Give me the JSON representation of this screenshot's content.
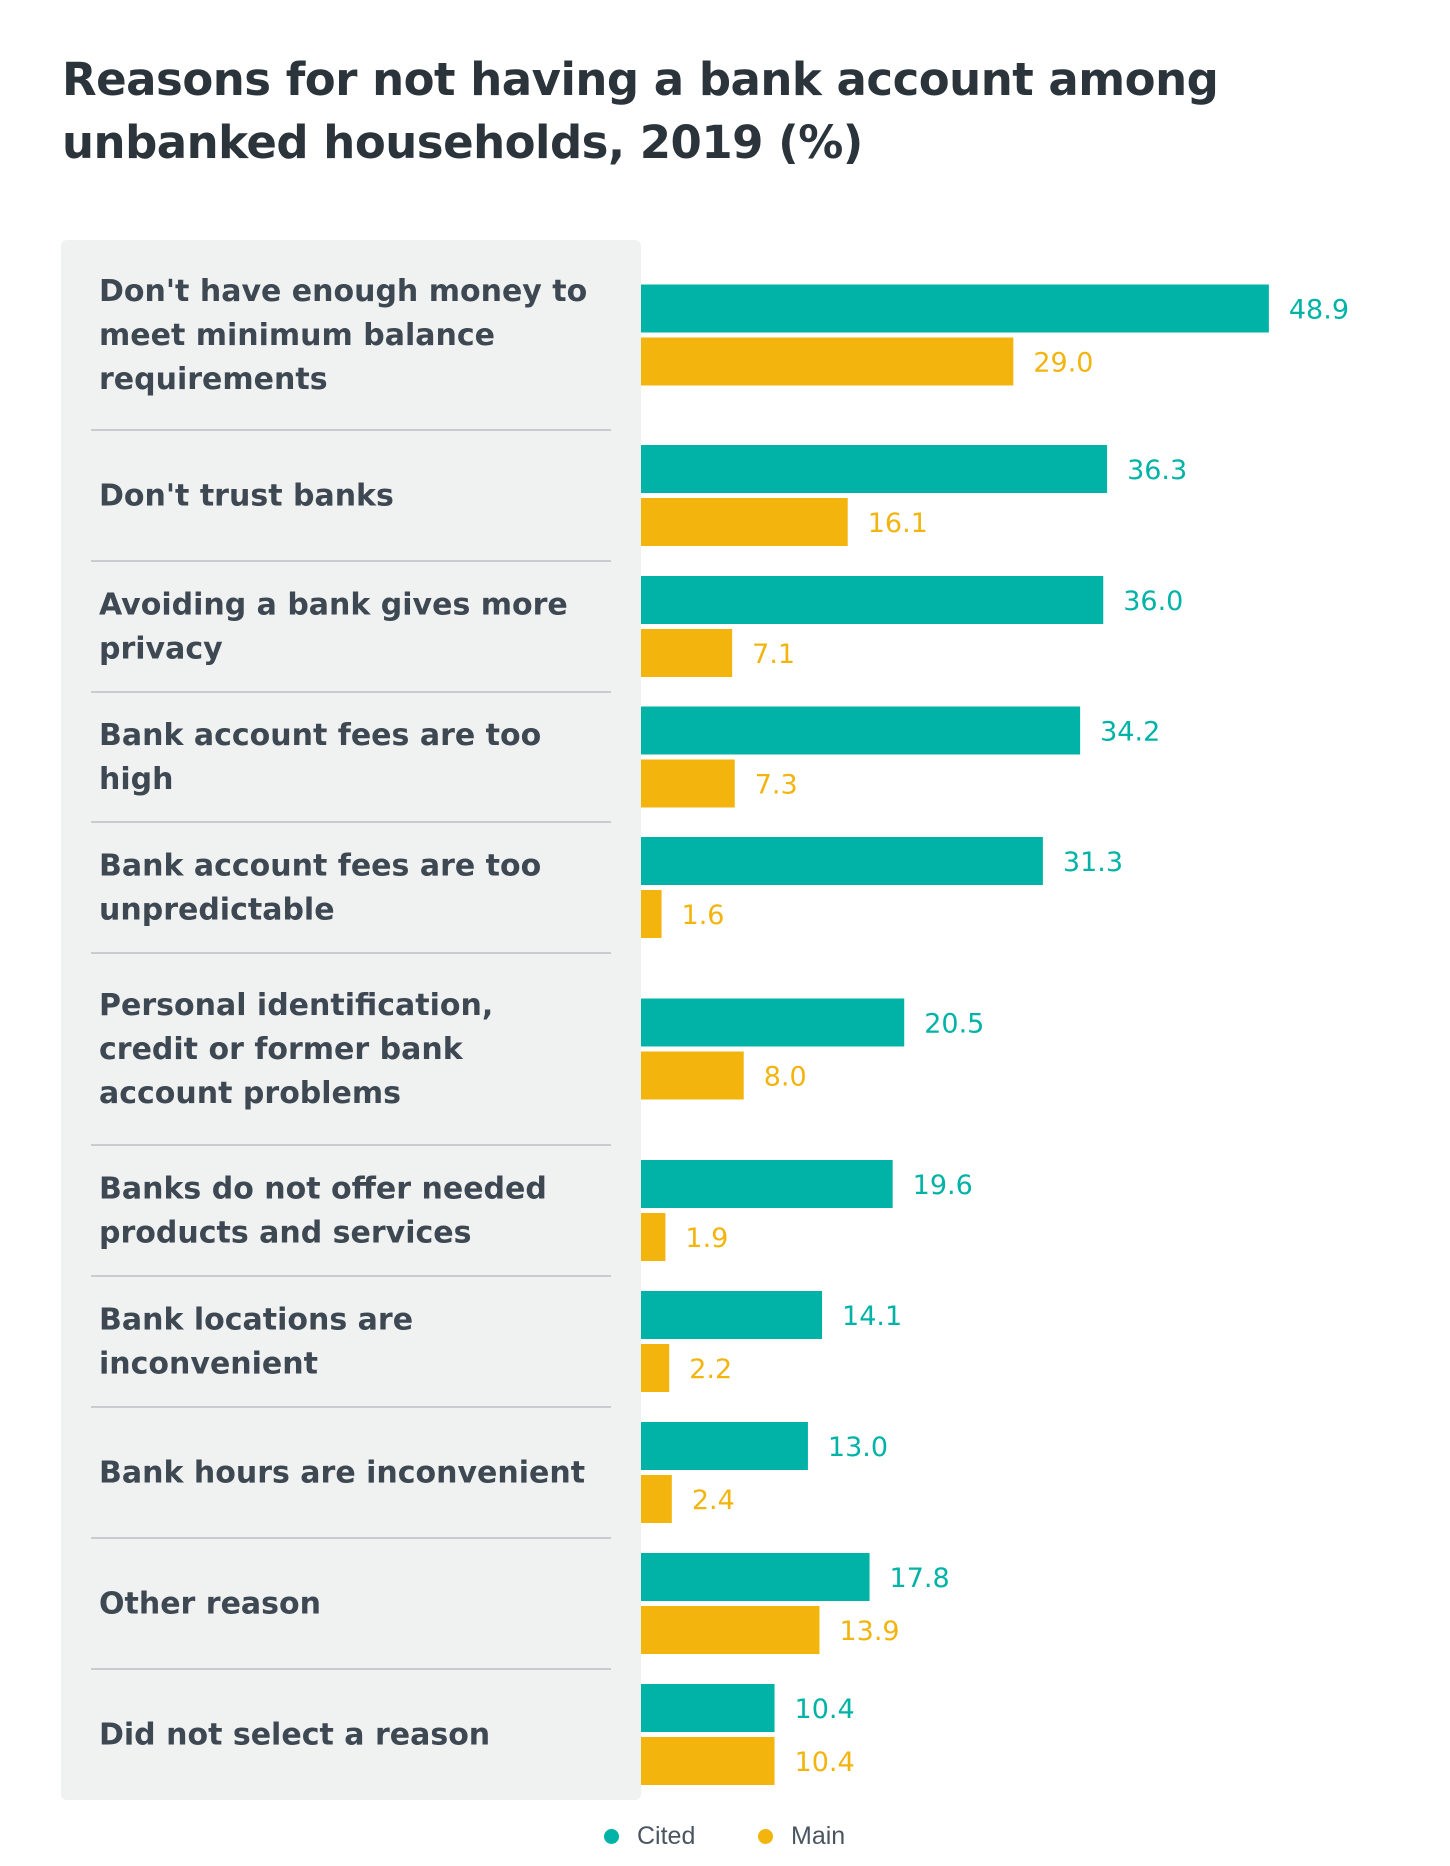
{
  "title": "Reasons for not having a bank account among unbanked households, 2019 (%)",
  "colors": {
    "cited": "#00b3a6",
    "main": "#f2b40d",
    "panel": "#f0f1f1",
    "divider": "#c8cccf"
  },
  "legend": [
    {
      "label": "Cited",
      "color": "#00b3a6"
    },
    {
      "label": "Main",
      "color": "#f2b40d"
    }
  ],
  "chart_data": {
    "type": "bar",
    "orientation": "horizontal",
    "title": "Reasons for not having a bank account among unbanked households, 2019 (%)",
    "categories": [
      "Don't have enough money to meet minimum balance requirements",
      "Don't trust banks",
      "Avoiding a bank gives more privacy",
      "Bank account fees are too high",
      "Bank account fees are too unpredictable",
      "Personal identification, credit or former bank account problems",
      "Banks do not offer needed products and services",
      "Bank locations are inconvenient",
      "Bank hours are inconvenient",
      "Other reason",
      "Did not select a reason"
    ],
    "series": [
      {
        "name": "Cited",
        "values": [
          48.9,
          36.3,
          36.0,
          34.2,
          31.3,
          20.5,
          19.6,
          14.1,
          13.0,
          17.8,
          10.4
        ]
      },
      {
        "name": "Main",
        "values": [
          29.0,
          16.1,
          7.1,
          7.3,
          1.6,
          8.0,
          1.9,
          2.2,
          2.4,
          13.9,
          10.4
        ]
      }
    ],
    "value_labels": [
      [
        "48.9",
        "29.0"
      ],
      [
        "36.3",
        "16.1"
      ],
      [
        "36.0",
        "7.1"
      ],
      [
        "34.2",
        "7.3"
      ],
      [
        "31.3",
        "1.6"
      ],
      [
        "20.5",
        "8.0"
      ],
      [
        "19.6",
        "1.9"
      ],
      [
        "14.1",
        "2.2"
      ],
      [
        "13.0",
        "2.4"
      ],
      [
        "17.8",
        "13.9"
      ],
      [
        "10.4",
        "10.4"
      ]
    ],
    "xlim": [
      0,
      50
    ],
    "grid": false,
    "legend_position": "bottom-center"
  }
}
